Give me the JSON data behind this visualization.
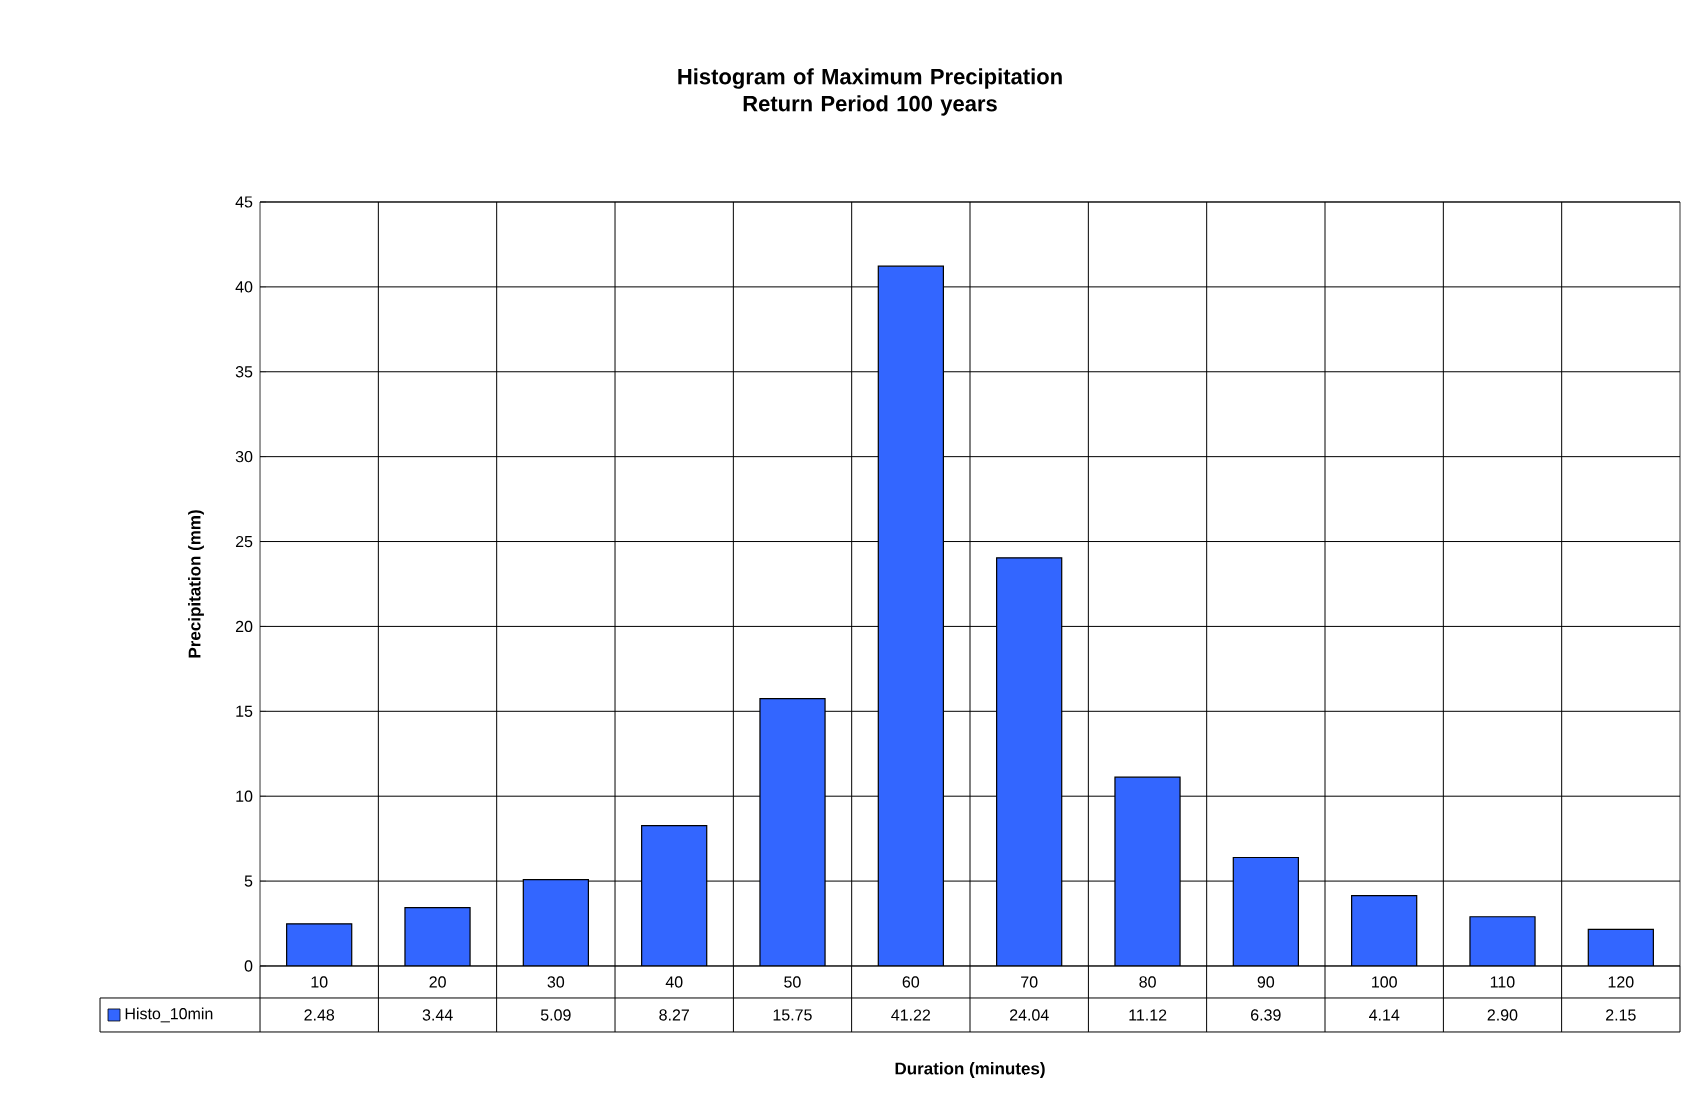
{
  "chart_data": {
    "type": "bar",
    "title": "Histogram of Maximum Precipitation\nReturn Period 100 years",
    "xlabel": "Duration (minutes)",
    "ylabel": "Precipitation (mm)",
    "categories": [
      "10",
      "20",
      "30",
      "40",
      "50",
      "60",
      "70",
      "80",
      "90",
      "100",
      "110",
      "120"
    ],
    "series": [
      {
        "name": "Histo_10min",
        "color": "#3366ff",
        "values": [
          2.48,
          3.44,
          5.09,
          8.27,
          15.75,
          41.22,
          24.04,
          11.12,
          6.39,
          4.14,
          2.9,
          2.15
        ],
        "value_labels": [
          "2.48",
          "3.44",
          "5.09",
          "8.27",
          "15.75",
          "41.22",
          "24.04",
          "11.12",
          "6.39",
          "4.14",
          "2.90",
          "2.15"
        ]
      }
    ],
    "ylim": [
      0,
      45
    ],
    "yticks": [
      0,
      5,
      10,
      15,
      20,
      25,
      30,
      35,
      40,
      45
    ],
    "grid": true,
    "legend": "bottom left"
  }
}
